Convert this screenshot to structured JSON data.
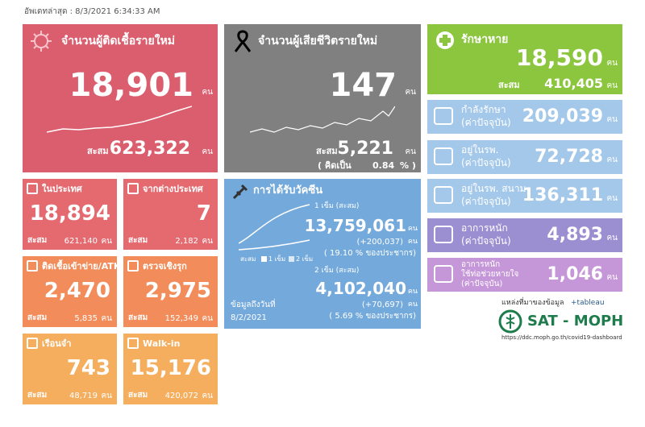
{
  "header": {
    "updated": "อัพเดทล่าสุด : 8/3/2021 6:34:33 AM"
  },
  "new_cases": {
    "title": "จำนวนผู้ติดเชื้อรายใหม่",
    "value": "18,901",
    "unit": "คน",
    "total_label": "สะสม",
    "total": "623,322",
    "total_unit": "คน"
  },
  "deaths": {
    "title": "จำนวนผู้เสียชีวิตรายใหม่",
    "value": "147",
    "unit": "คน",
    "total_label": "สะสม",
    "total": "5,221",
    "total_unit": "คน",
    "percent_open": "( คิดเป็น",
    "percent": "0.84",
    "percent_close": "% )"
  },
  "recovered": {
    "title": "รักษาหาย",
    "value": "18,590",
    "unit": "คน",
    "total_label": "สะสม",
    "total": "410,405",
    "total_unit": "คน"
  },
  "status": [
    {
      "lines": [
        "กำลังรักษา",
        "(ค่าปัจจุบัน)"
      ],
      "value": "209,039",
      "unit": "คน"
    },
    {
      "lines": [
        "อยู่ในรพ.",
        "(ค่าปัจจุบัน)"
      ],
      "value": "72,728",
      "unit": "คน"
    },
    {
      "lines": [
        "อยู่ในรพ. สนาม",
        "(ค่าปัจจุบัน)"
      ],
      "value": "136,311",
      "unit": "คน"
    },
    {
      "lines": [
        "อาการหนัก",
        "(ค่าปัจจุบัน)"
      ],
      "value": "4,893",
      "unit": "คน"
    },
    {
      "lines": [
        "อาการหนัก",
        "ใช้ท่อช่วยหายใจ",
        "(ค่าปัจจุบัน)"
      ],
      "value": "1,046",
      "unit": "คน"
    }
  ],
  "sub": [
    {
      "title": "ในประเทศ",
      "value": "18,894",
      "total_label": "สะสม",
      "total": "621,140",
      "total_unit": "คน"
    },
    {
      "title": "จากต่างประเทศ",
      "value": "7",
      "total_label": "สะสม",
      "total": "2,182",
      "total_unit": "คน"
    },
    {
      "title": "ติดเชื้อเข้าข่าย/ATK",
      "value": "2,470",
      "total_label": "สะสม",
      "total": "5,835",
      "total_unit": "คน"
    },
    {
      "title": "ตรวจเชิงรุก",
      "value": "2,975",
      "total_label": "สะสม",
      "total": "152,349",
      "total_unit": "คน"
    },
    {
      "title": "เรือนจำ",
      "value": "743",
      "total_label": "สะสม",
      "total": "48,719",
      "total_unit": "คน"
    },
    {
      "title": "Walk-in",
      "value": "15,176",
      "total_label": "สะสม",
      "total": "420,072",
      "total_unit": "คน"
    }
  ],
  "vaccine": {
    "title": "การได้รับวัคซีน",
    "dose1_label": "1 เข็ม (สะสม)",
    "dose1": "13,759,061",
    "dose1_unit": "คน",
    "dose1_new": "(+200,037)",
    "dose1_new_unit": "คน",
    "dose1_pct": "( 19.10 % ของประชากร)",
    "legend": [
      "สะสม",
      "1 เข็ม",
      "2 เข็ม"
    ],
    "dose2_label": "2 เข็ม (สะสม)",
    "dose2": "4,102,040",
    "dose2_unit": "คน",
    "dose2_new": "(+70,697)",
    "dose2_new_unit": "คน",
    "dose2_pct": "( 5.69 % ของประชากร)",
    "date_label": "ข้อมูลถึงวันที่",
    "date": "8/2/2021"
  },
  "source": {
    "label": "แหล่งที่มาของข้อมูล",
    "tableau": "+tableau",
    "logo": "SAT - MOPH",
    "url": "https://ddc.moph.go.th/covid19-dashboard"
  }
}
